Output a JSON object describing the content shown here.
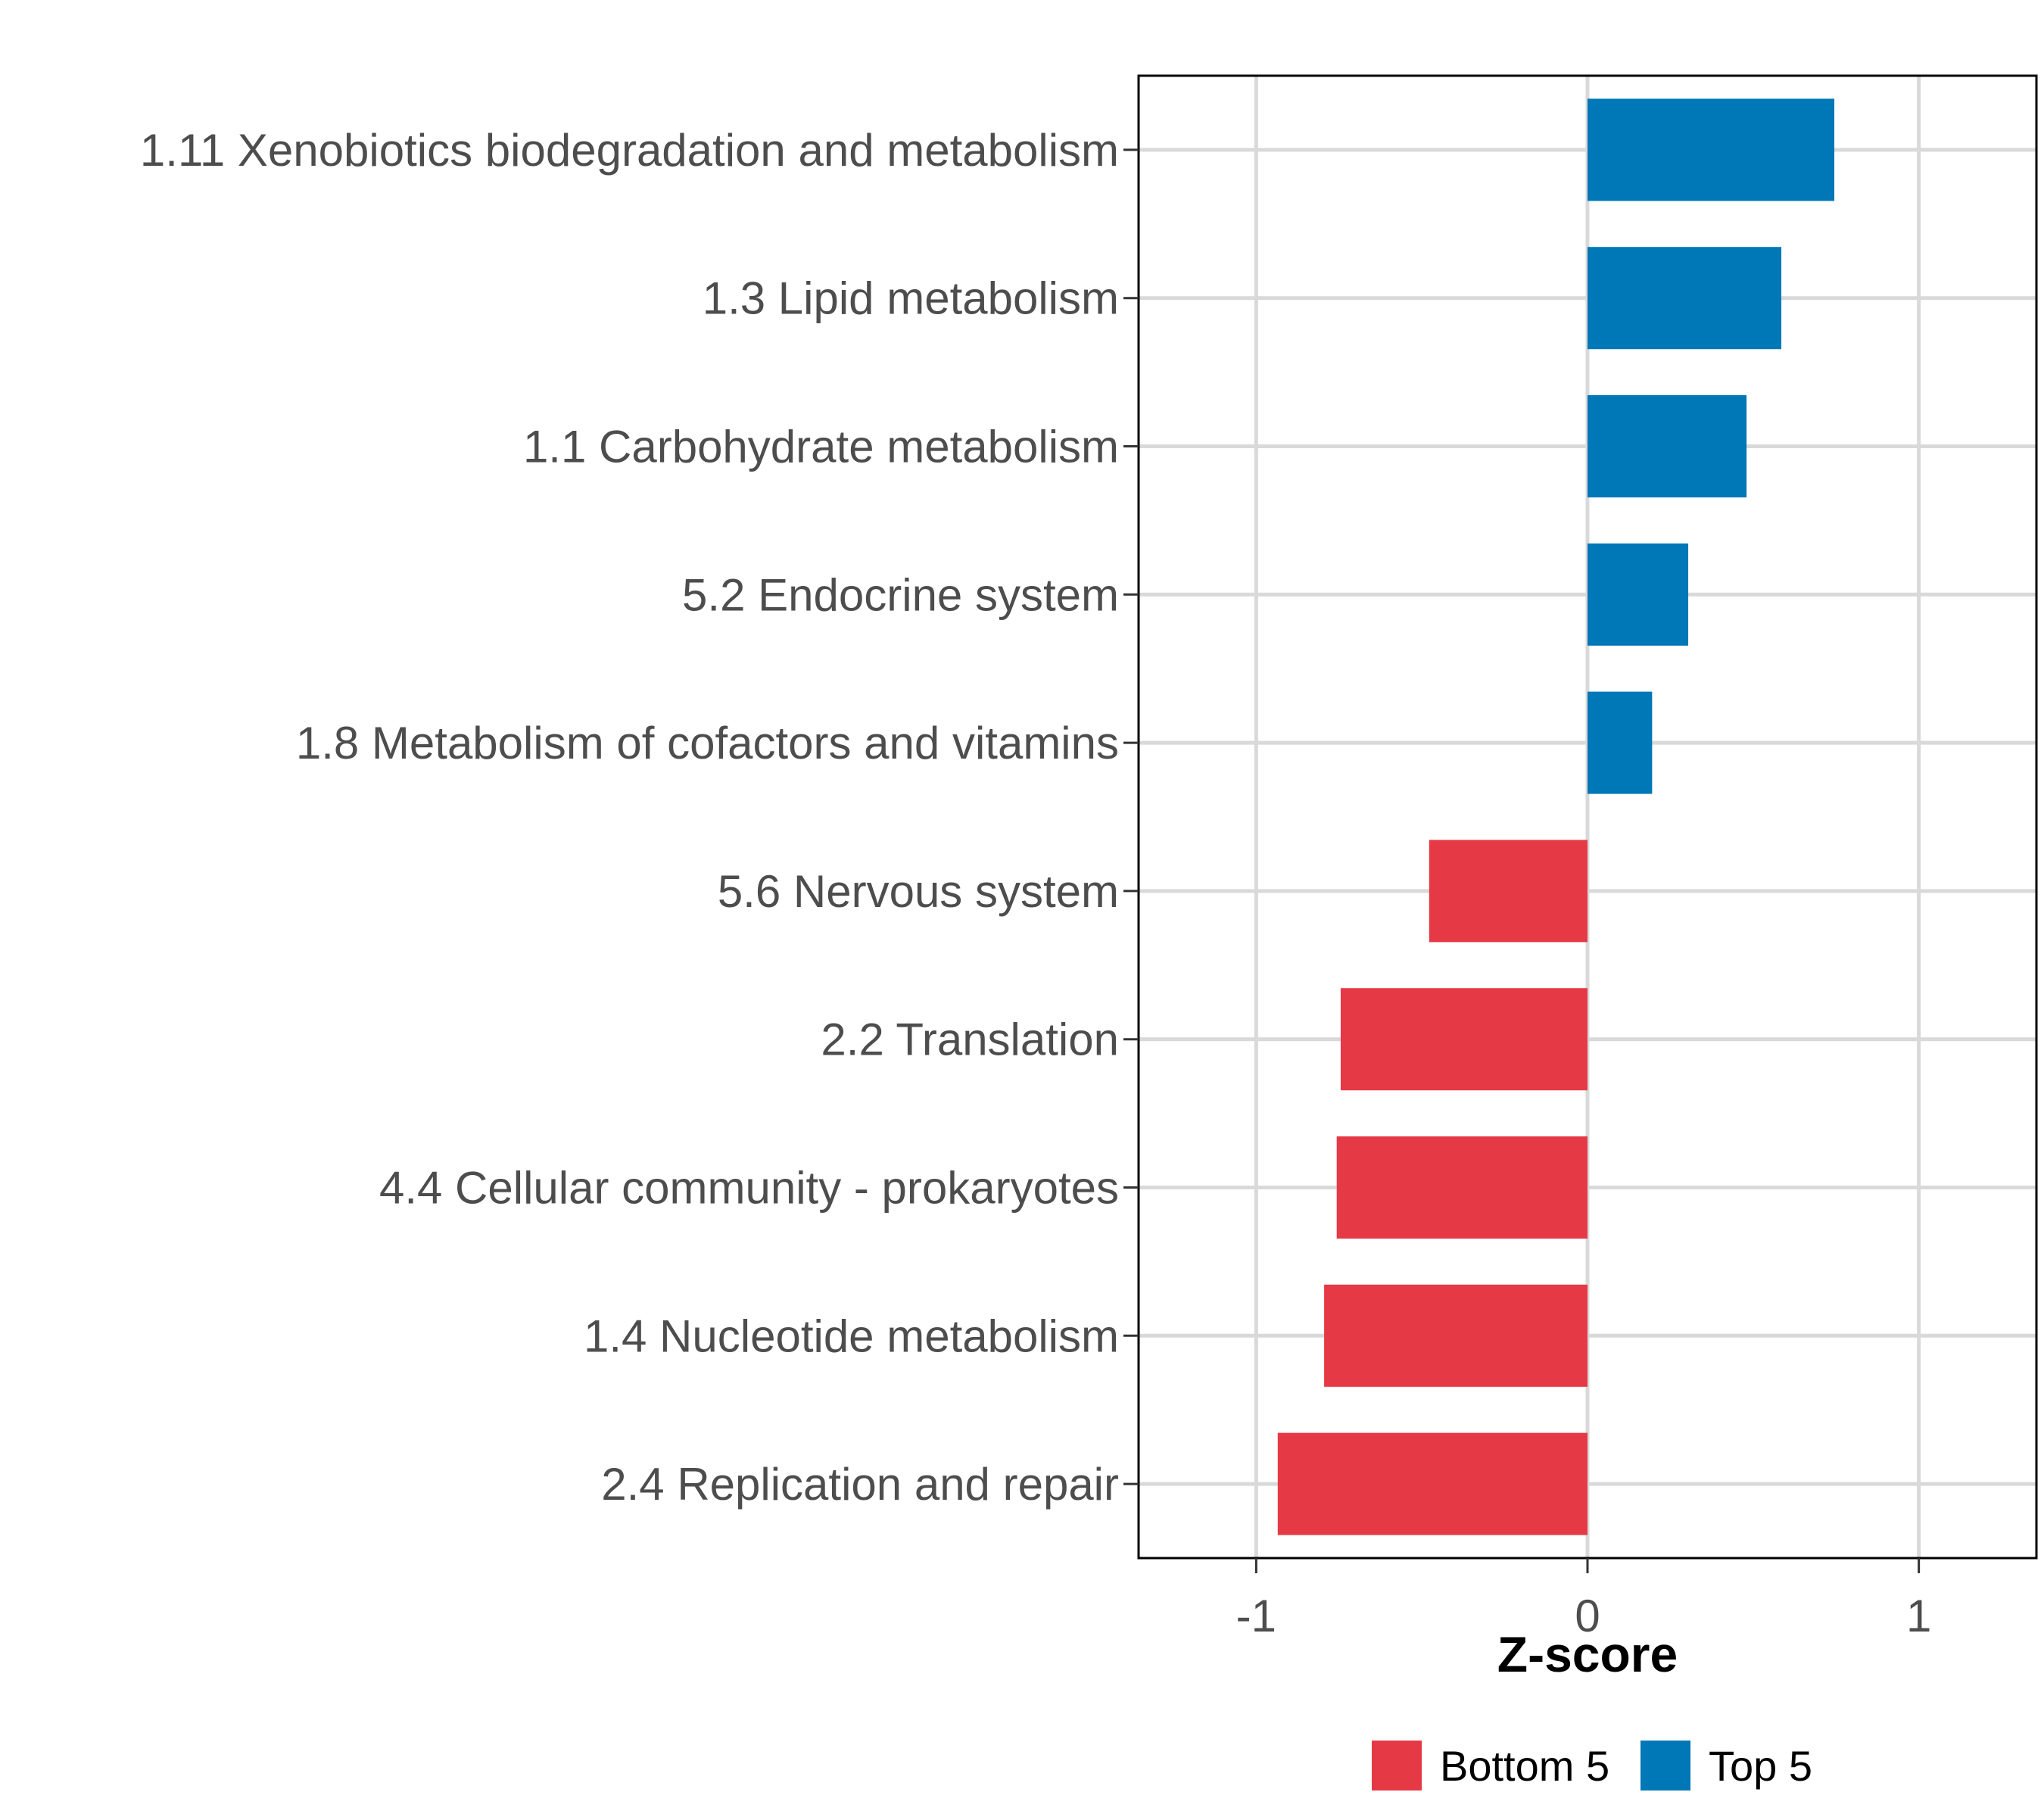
{
  "chart_data": {
    "type": "bar",
    "orientation": "horizontal",
    "title": "",
    "xlabel": "Z-score",
    "ylabel": "",
    "xlim": [
      -1.355,
      1.355
    ],
    "xticks": [
      -1,
      0,
      1
    ],
    "xtick_labels": [
      "-1",
      "0",
      "1"
    ],
    "grid": true,
    "legend_position": "bottom",
    "categories": [
      "1.11 Xenobiotics biodegradation and metabolism",
      "1.3 Lipid metabolism",
      "1.1 Carbohydrate metabolism",
      "5.2 Endocrine system",
      "1.8 Metabolism of cofactors and vitamins",
      "5.6 Nervous system",
      "2.2 Translation",
      "4.4 Cellular community - prokaryotes",
      "1.4 Nucleotide metabolism",
      "2.4 Replication and repair"
    ],
    "values": [
      0.745,
      0.585,
      0.48,
      0.304,
      0.195,
      -0.478,
      -0.745,
      -0.757,
      -0.795,
      -0.935
    ],
    "groups": [
      "Top 5",
      "Top 5",
      "Top 5",
      "Top 5",
      "Top 5",
      "Bottom 5",
      "Bottom 5",
      "Bottom 5",
      "Bottom 5",
      "Bottom 5"
    ],
    "legend": [
      {
        "label": "Bottom 5",
        "color": "#E63946"
      },
      {
        "label": "Top 5",
        "color": "#0077B6"
      }
    ]
  }
}
